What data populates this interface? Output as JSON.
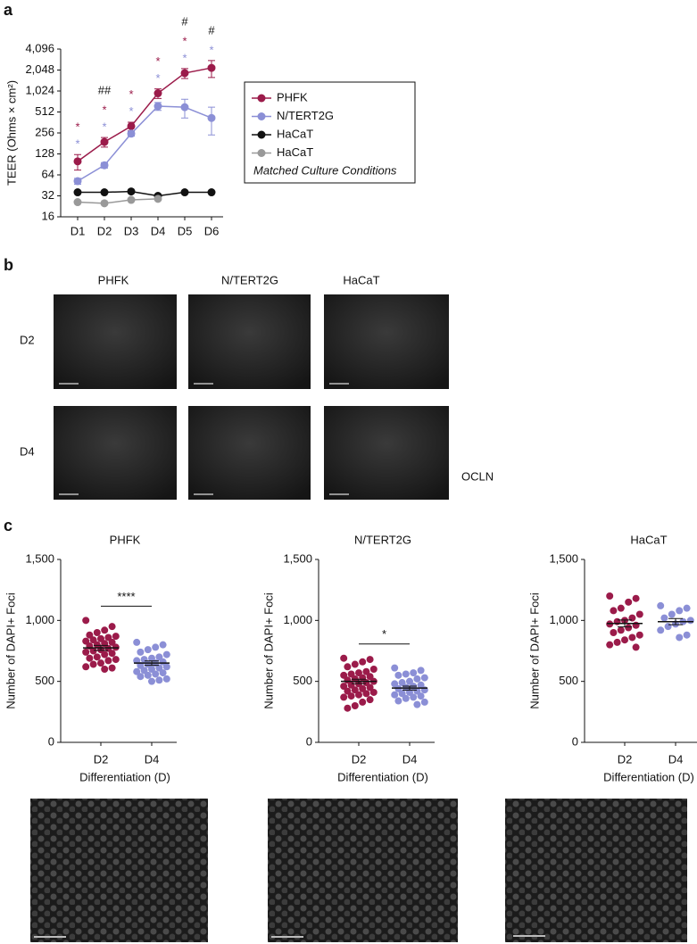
{
  "panel_labels": [
    "a",
    "b",
    "c"
  ],
  "micrographs": {
    "columns": [
      "PHFK",
      "N/TERT2G",
      "HaCaT"
    ],
    "rows": [
      "D2",
      "D4"
    ],
    "stain": "OCLN"
  },
  "chart_data": [
    {
      "type": "line",
      "ylabel": "TEER (Ohms × cm²)",
      "log_scale": true,
      "log_base": 2,
      "categories": [
        "D1",
        "D2",
        "D3",
        "D4",
        "D5",
        "D6"
      ],
      "ylim": [
        16,
        4096
      ],
      "yticks": [
        16,
        32,
        64,
        128,
        256,
        512,
        {
          "value": 1024,
          "label": "1,024"
        },
        {
          "value": 2048,
          "label": "2,048"
        },
        {
          "value": 4096,
          "label": "4,096"
        }
      ],
      "legend": "right",
      "legend_note": "Matched Culture Conditions",
      "hash_marks": [
        null,
        "##",
        null,
        null,
        "#",
        "#"
      ],
      "series": [
        {
          "name": "PHFK",
          "color": "#9b1b4a",
          "values": [
            100,
            190,
            320,
            950,
            1850,
            2200
          ],
          "errors": [
            25,
            30,
            45,
            150,
            300,
            600
          ],
          "significance": [
            "*",
            "*",
            "*",
            "*",
            "*",
            null
          ]
        },
        {
          "name": "N/TERT2G",
          "color": "#8b8fd6",
          "values": [
            52,
            88,
            250,
            620,
            600,
            420
          ],
          "errors": [
            5,
            8,
            20,
            80,
            180,
            180
          ],
          "significance": [
            "*",
            "*",
            "*",
            "*",
            "*",
            "*"
          ]
        },
        {
          "name": "HaCaT",
          "color": "#111111",
          "values": [
            36,
            36,
            37,
            32,
            36,
            36
          ]
        },
        {
          "name": "HaCaT",
          "color": "#999999",
          "values": [
            26,
            25,
            28,
            29,
            null,
            null
          ]
        }
      ]
    },
    {
      "type": "dotplot",
      "title": "PHFK",
      "ylabel": "Number of DAPI+ Foci",
      "xlabel": "Differentiation (D)",
      "categories": [
        "D2",
        "D4"
      ],
      "ylim": [
        0,
        1500
      ],
      "yticks": [
        0,
        500,
        {
          "value": 1000,
          "label": "1,000"
        },
        {
          "value": 1500,
          "label": "1,500"
        }
      ],
      "significance": "****",
      "groups": [
        {
          "color": "#9b1b4a",
          "mean": 775,
          "sem": 20,
          "values": [
            1000,
            950,
            920,
            900,
            880,
            870,
            860,
            850,
            840,
            830,
            820,
            810,
            800,
            790,
            780,
            770,
            760,
            750,
            740,
            730,
            720,
            700,
            690,
            680,
            670,
            650,
            640,
            620,
            610,
            600
          ]
        },
        {
          "color": "#8b8fd6",
          "mean": 650,
          "sem": 18,
          "values": [
            820,
            800,
            780,
            760,
            740,
            720,
            700,
            690,
            680,
            670,
            660,
            650,
            640,
            630,
            620,
            610,
            600,
            590,
            580,
            570,
            560,
            550,
            540,
            520,
            510,
            500
          ]
        }
      ]
    },
    {
      "type": "dotplot",
      "title": "N/TERT2G",
      "ylabel": "Number of DAPI+ Foci",
      "xlabel": "Differentiation (D)",
      "categories": [
        "D2",
        "D4"
      ],
      "ylim": [
        0,
        1500
      ],
      "yticks": [
        0,
        500,
        {
          "value": 1000,
          "label": "1,000"
        },
        {
          "value": 1500,
          "label": "1,500"
        }
      ],
      "significance": "*",
      "groups": [
        {
          "color": "#9b1b4a",
          "mean": 500,
          "sem": 18,
          "values": [
            690,
            680,
            660,
            640,
            620,
            600,
            580,
            570,
            560,
            550,
            540,
            530,
            520,
            510,
            500,
            490,
            480,
            470,
            460,
            450,
            440,
            430,
            420,
            410,
            400,
            390,
            380,
            370,
            350,
            330,
            300,
            280
          ]
        },
        {
          "color": "#8b8fd6",
          "mean": 445,
          "sem": 16,
          "values": [
            610,
            590,
            570,
            560,
            550,
            530,
            520,
            500,
            490,
            480,
            470,
            460,
            450,
            440,
            430,
            420,
            410,
            400,
            390,
            380,
            370,
            360,
            340,
            330,
            310
          ]
        }
      ]
    },
    {
      "type": "dotplot",
      "title": "HaCaT",
      "ylabel": "Number of DAPI+ Foci",
      "xlabel": "Differentiation (D)",
      "categories": [
        "D2",
        "D4"
      ],
      "ylim": [
        0,
        1500
      ],
      "yticks": [
        0,
        500,
        {
          "value": 1000,
          "label": "1,000"
        },
        {
          "value": 1500,
          "label": "1,500"
        }
      ],
      "significance": null,
      "groups": [
        {
          "color": "#9b1b4a",
          "mean": 975,
          "sem": 28,
          "values": [
            1200,
            1180,
            1150,
            1100,
            1080,
            1050,
            1020,
            1000,
            990,
            970,
            960,
            940,
            920,
            900,
            880,
            860,
            840,
            820,
            800,
            780
          ]
        },
        {
          "color": "#8b8fd6",
          "mean": 990,
          "sem": 25,
          "values": [
            1120,
            1100,
            1080,
            1050,
            1020,
            1000,
            990,
            970,
            950,
            920,
            880,
            860
          ]
        }
      ]
    }
  ]
}
